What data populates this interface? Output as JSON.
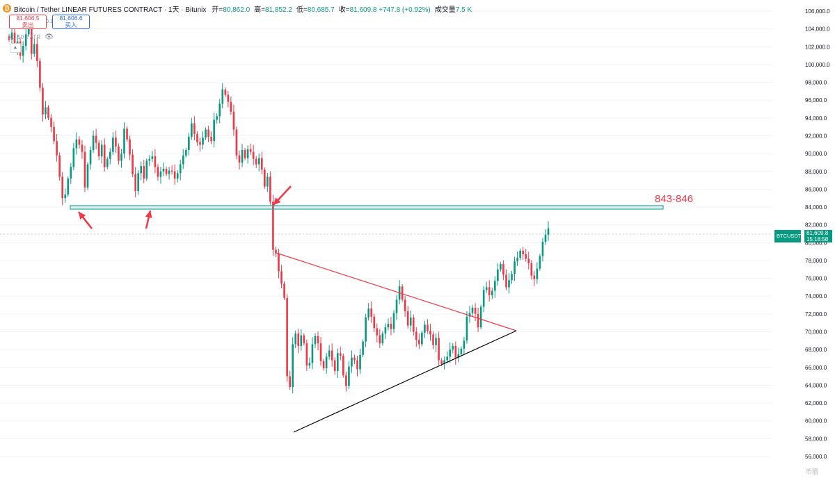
{
  "header": {
    "logo_char": "₿",
    "title": "Bitcoin / Tether LINEAR FUTURES CONTRACT · 1天 · Bitunix",
    "ohlc": [
      {
        "label": "开=",
        "value": "80,862.0"
      },
      {
        "label": "高=",
        "value": "81,852.2"
      },
      {
        "label": "低=",
        "value": "80,685.7"
      },
      {
        "label": "收=",
        "value": "81,609.8 +747.8 (+0.92%)"
      },
      {
        "label": "成交量",
        "value": "7.5 K"
      }
    ]
  },
  "trade": {
    "sell_price": "81,606.5",
    "sell_label": "卖出",
    "spread": "0.1",
    "buy_price": "81,606.6",
    "buy_label": "买入"
  },
  "indicator": {
    "label": "KC 50 2 ATR"
  },
  "collapse_icon": "chevron-up-icon",
  "zone_label": "843-846",
  "price_tags": {
    "symbol": "BTCUSDT.P",
    "last": "81,609.8",
    "countdown": "15:18:58"
  },
  "watermark": "币圈",
  "colors": {
    "up": "#089981",
    "down": "#f23645",
    "zone": "#26a69a",
    "arrow": "#f23645",
    "resistance_line": "#f23645",
    "support_line": "#000000"
  },
  "chart_data": {
    "type": "candlestick",
    "title": "Bitcoin / Tether LINEAR FUTURES CONTRACT",
    "interval": "1天",
    "y_ticks": [
      56000,
      58000,
      60000,
      62000,
      64000,
      66000,
      68000,
      70000,
      72000,
      74000,
      76000,
      78000,
      80000,
      82000,
      84000,
      86000,
      88000,
      90000,
      92000,
      94000,
      96000,
      98000,
      100000,
      102000,
      104000,
      106000
    ],
    "y_tick_labels": [
      "56,000.0",
      "58,000.0",
      "60,000.0",
      "62,000.0",
      "64,000.0",
      "66,000.0",
      "68,000.0",
      "70,000.0",
      "72,000.0",
      "74,000.0",
      "76,000.0",
      "78,000.0",
      "80,000.0",
      "82,000.0",
      "84,000.0",
      "86,000.0",
      "88,000.0",
      "90,000.0",
      "92,000.0",
      "94,000.0",
      "96,000.0",
      "98,000.0",
      "100,000.0",
      "102,000.0",
      "104,000.0",
      "106,000.0"
    ],
    "ylim": [
      55000,
      107500
    ],
    "last_price": 81609.8,
    "zone": {
      "low": 84300,
      "high": 84600,
      "label": "843-846"
    },
    "closes": [
      102800,
      103600,
      101800,
      102600,
      101000,
      102100,
      103400,
      104200,
      101200,
      102300,
      100400,
      97400,
      94400,
      95200,
      94000,
      93000,
      91400,
      89800,
      87400,
      85000,
      85400,
      87200,
      88500,
      90600,
      91600,
      91000,
      90200,
      86200,
      88800,
      90400,
      92000,
      91200,
      89700,
      91000,
      88500,
      89400,
      90200,
      91800,
      90800,
      89200,
      90000,
      92800,
      91600,
      89900,
      87700,
      85800,
      87800,
      88600,
      87200,
      89200,
      89400,
      89700,
      88500,
      87400,
      88000,
      88300,
      87700,
      88100,
      88000,
      87200,
      87800,
      88800,
      89800,
      90400,
      91900,
      93400,
      92200,
      91300,
      91000,
      91800,
      92700,
      91900,
      91400,
      93800,
      94200,
      95600,
      97200,
      96600,
      95800,
      94700,
      92700,
      89800,
      89000,
      90400,
      89500,
      90500,
      90200,
      89400,
      88800,
      89500,
      88200,
      86300,
      87400,
      84600,
      79200,
      78800,
      76800,
      75400,
      73800,
      65000,
      63800,
      68600,
      69800,
      68400,
      69600,
      68700,
      66200,
      66500,
      68600,
      69500,
      68700,
      66700,
      65900,
      67200,
      67900,
      66800,
      65600,
      67600,
      67300,
      65100,
      63900,
      66100,
      67100,
      66800,
      65800,
      67400,
      68900,
      71600,
      72600,
      71700,
      70400,
      69600,
      68700,
      69800,
      70500,
      70900,
      70300,
      72100,
      73600,
      75100,
      73600,
      72300,
      70700,
      71600,
      70000,
      69100,
      68600,
      69900,
      70800,
      70100,
      69700,
      68500,
      69300,
      66800,
      66400,
      66800,
      67200,
      68000,
      68400,
      67100,
      67500,
      68100,
      69000,
      71700,
      72100,
      72700,
      72000,
      70500,
      72800,
      74700,
      75000,
      74100,
      74600,
      75700,
      77000,
      77600,
      76400,
      75000,
      75800,
      76500,
      77900,
      78300,
      79100,
      78700,
      78200,
      77700,
      76300,
      75900,
      77100,
      78500,
      80100,
      80900,
      81609.8
    ]
  }
}
